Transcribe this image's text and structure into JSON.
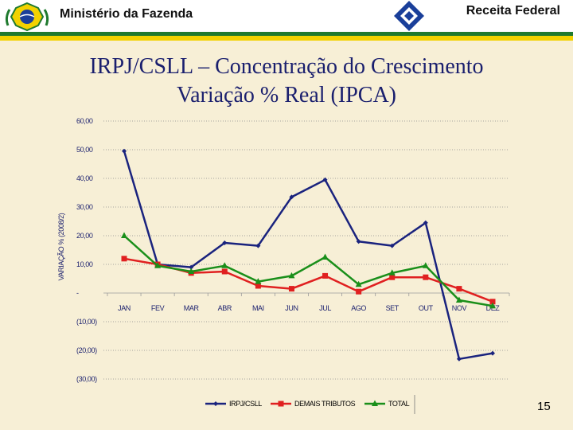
{
  "header": {
    "left_title": "Ministério da Fazenda",
    "right_title": "Receita Federal",
    "left_logo_icon": "brazil-coat-of-arms-icon",
    "right_logo_icon": "receita-federal-emblem-icon",
    "colors": {
      "green": "#1f7a2e",
      "yellow": "#f2d200"
    }
  },
  "title": {
    "line1": "IRPJ/CSLL – Concentração do Crescimento",
    "line2": "Variação % Real (IPCA)"
  },
  "page_number": "15",
  "chart_data": {
    "type": "line",
    "ylabel": "VARIAÇÃO % (2008/2)",
    "ylim": [
      -30,
      60
    ],
    "yticks": [
      {
        "value": 60,
        "label": "60,00"
      },
      {
        "value": 50,
        "label": "50,00"
      },
      {
        "value": 40,
        "label": "40,00"
      },
      {
        "value": 30,
        "label": "30,00"
      },
      {
        "value": 20,
        "label": "20,00"
      },
      {
        "value": 10,
        "label": "10,00"
      },
      {
        "value": 0,
        "label": "-"
      },
      {
        "value": -10,
        "label": "(10,00)"
      },
      {
        "value": -20,
        "label": "(20,00)"
      },
      {
        "value": -30,
        "label": "(30,00)"
      }
    ],
    "grid": true,
    "legend_position": "bottom",
    "categories": [
      "JAN",
      "FEV",
      "MAR",
      "ABR",
      "MAI",
      "JUN",
      "JUL",
      "AGO",
      "SET",
      "OUT",
      "NOV",
      "DEZ"
    ],
    "series": [
      {
        "name": "IRPJ/CSLL",
        "color": "#1a237e",
        "marker": "diamond",
        "values": [
          49.5,
          10.0,
          9.0,
          17.5,
          16.5,
          33.5,
          39.5,
          18.0,
          16.5,
          24.5,
          -23.0,
          -21.0
        ]
      },
      {
        "name": "DEMAIS TRIBUTOS",
        "color": "#e02020",
        "marker": "square",
        "values": [
          12.0,
          10.0,
          7.0,
          7.5,
          2.5,
          1.5,
          6.0,
          0.5,
          5.5,
          5.5,
          1.5,
          -3.0
        ]
      },
      {
        "name": "TOTAL",
        "color": "#1a8f1a",
        "marker": "triangle",
        "values": [
          20.0,
          9.5,
          7.5,
          9.5,
          4.0,
          6.0,
          12.5,
          3.0,
          7.0,
          9.5,
          -2.5,
          -4.5
        ]
      }
    ]
  }
}
